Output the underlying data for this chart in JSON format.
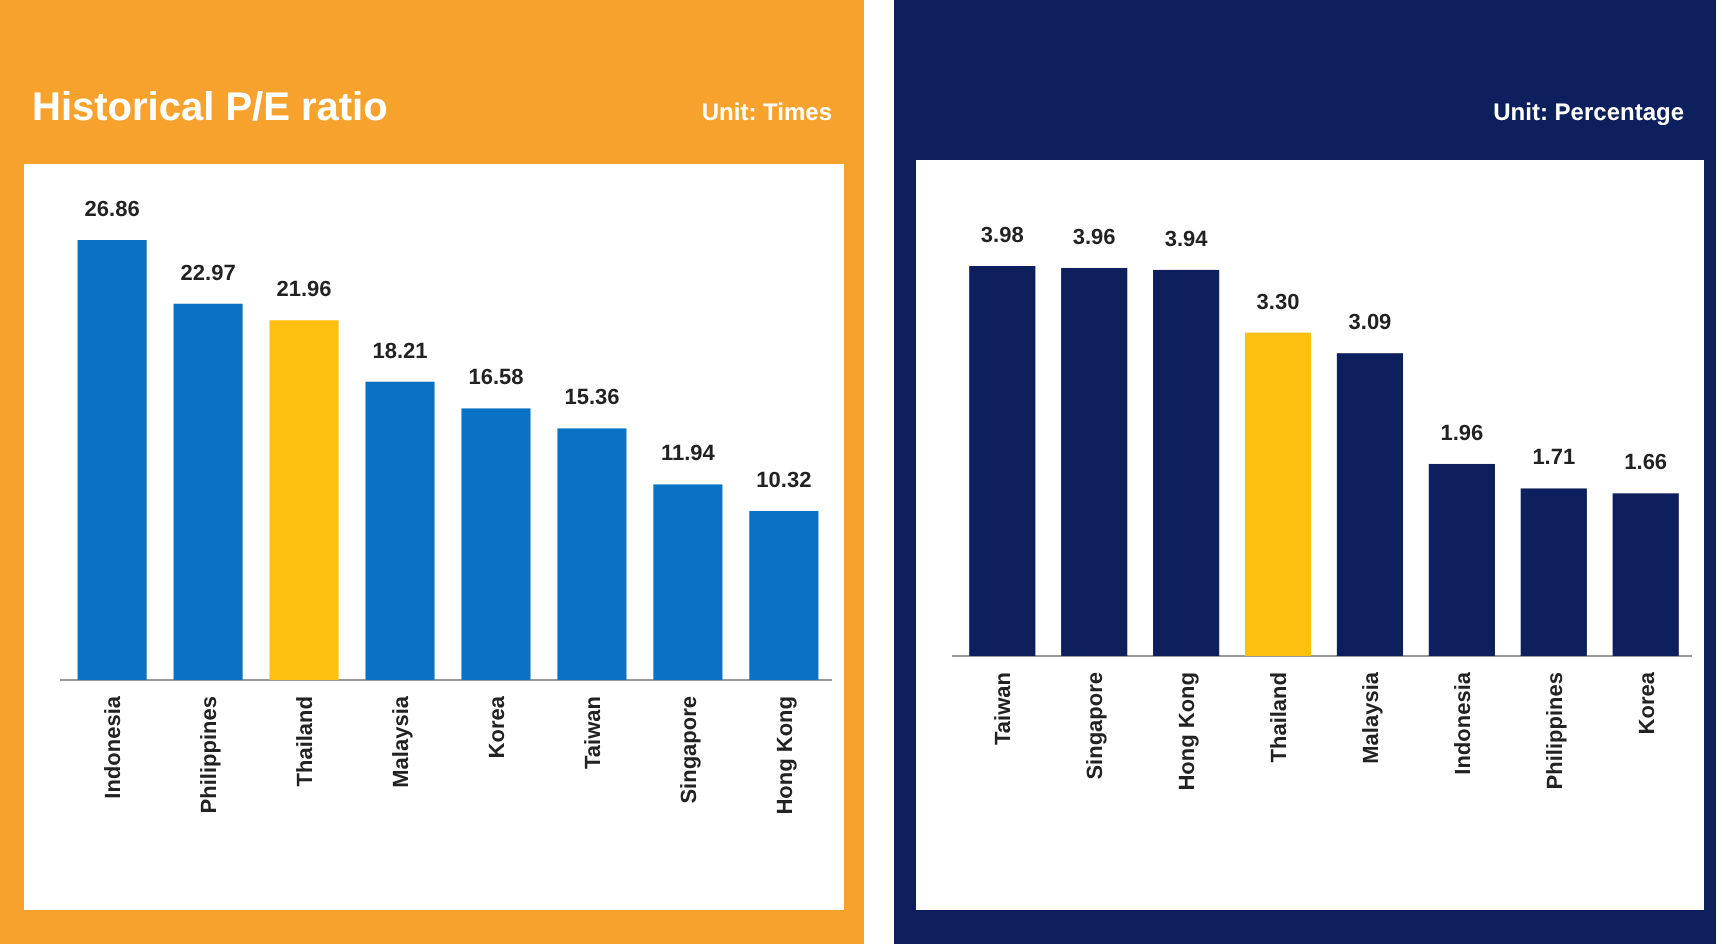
{
  "chart_data": [
    {
      "type": "bar",
      "title": "Historical P/E ratio",
      "annotations": [
        "Unit: Times"
      ],
      "categories": [
        "Indonesia",
        "Philippines",
        "Thailand",
        "Malaysia",
        "Korea",
        "Taiwan",
        "Singapore",
        "Hong Kong"
      ],
      "values": [
        26.86,
        22.97,
        21.96,
        18.21,
        16.58,
        15.36,
        11.94,
        10.32
      ],
      "colors": [
        "#0a72c4",
        "#0a72c4",
        "#fdc010",
        "#0a72c4",
        "#0a72c4",
        "#0a72c4",
        "#0a72c4",
        "#0a72c4"
      ],
      "data_labels": true
    },
    {
      "type": "bar",
      "annotations": [
        "Unit: Percentage"
      ],
      "categories": [
        "Taiwan",
        "Singapore",
        "Hong Kong",
        "Thailand",
        "Malaysia",
        "Indonesia",
        "Philippines",
        "Korea"
      ],
      "values": [
        3.98,
        3.96,
        3.94,
        3.3,
        3.09,
        1.96,
        1.71,
        1.66
      ],
      "colors": [
        "#0d1f5c",
        "#0d1f5c",
        "#0d1f5c",
        "#fdc010",
        "#0d1f5c",
        "#0d1f5c",
        "#0d1f5c",
        "#0d1f5c"
      ],
      "value_labels": [
        "3.98",
        "3.96",
        "3.94",
        "3.30",
        "3.09",
        "1.96",
        "1.71",
        "1.66"
      ]
    }
  ]
}
